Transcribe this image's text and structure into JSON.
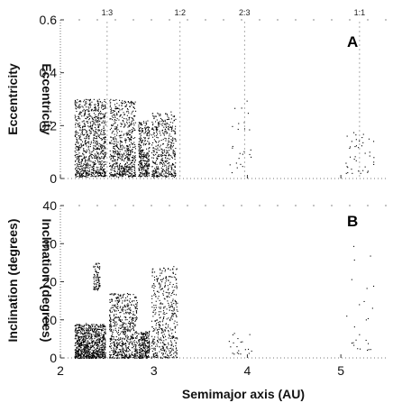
{
  "chart_data": [
    {
      "type": "scatter",
      "panel_label": "A",
      "ylabel": "Eccentricity",
      "ylabel_mirror": "Eccentricity",
      "xlim": [
        2,
        5.5
      ],
      "ylim": [
        0,
        0.6
      ],
      "yticks": [
        "0",
        "0.2",
        "0.4",
        "0.6"
      ],
      "resonances": [
        {
          "label": "1:3",
          "a": 2.5
        },
        {
          "label": "1:2",
          "a": 3.28
        },
        {
          "label": "2:3",
          "a": 3.97
        },
        {
          "label": "1:1",
          "a": 5.2
        }
      ],
      "clusters": [
        {
          "a_min": 2.15,
          "a_max": 2.48,
          "y_min": 0.01,
          "y_max": 0.3,
          "count": 900
        },
        {
          "a_min": 2.52,
          "a_max": 2.8,
          "y_min": 0.01,
          "y_max": 0.3,
          "count": 650
        },
        {
          "a_min": 2.83,
          "a_max": 2.95,
          "y_min": 0.01,
          "y_max": 0.22,
          "count": 300
        },
        {
          "a_min": 2.97,
          "a_max": 3.23,
          "y_min": 0.01,
          "y_max": 0.25,
          "count": 450
        },
        {
          "a_min": 3.8,
          "a_max": 4.05,
          "y_min": 0.02,
          "y_max": 0.3,
          "count": 25
        },
        {
          "a_min": 5.05,
          "a_max": 5.35,
          "y_min": 0.02,
          "y_max": 0.18,
          "count": 40
        }
      ]
    },
    {
      "type": "scatter",
      "panel_label": "B",
      "ylabel": "Inclination (degrees)",
      "ylabel_mirror": "Inclination (degrees)",
      "xlabel": "Semimajor axis (AU)",
      "xlim": [
        2,
        5.5
      ],
      "ylim": [
        0,
        40
      ],
      "xticks": [
        "2",
        "3",
        "4",
        "5"
      ],
      "yticks": [
        "0",
        "10",
        "20",
        "30",
        "40"
      ],
      "clusters": [
        {
          "a_min": 2.15,
          "a_max": 2.48,
          "y_min": 0,
          "y_max": 9,
          "count": 900
        },
        {
          "a_min": 2.52,
          "a_max": 2.82,
          "y_min": 0,
          "y_max": 17,
          "count": 650
        },
        {
          "a_min": 2.83,
          "a_max": 2.95,
          "y_min": 0,
          "y_max": 7,
          "count": 250
        },
        {
          "a_min": 2.97,
          "a_max": 3.25,
          "y_min": 0,
          "y_max": 24,
          "count": 450
        },
        {
          "a_min": 2.35,
          "a_max": 2.42,
          "y_min": 18,
          "y_max": 25,
          "count": 80
        },
        {
          "a_min": 3.8,
          "a_max": 4.05,
          "y_min": 1,
          "y_max": 8,
          "count": 20
        },
        {
          "a_min": 5.05,
          "a_max": 5.35,
          "y_min": 2,
          "y_max": 30,
          "count": 25
        }
      ]
    }
  ]
}
